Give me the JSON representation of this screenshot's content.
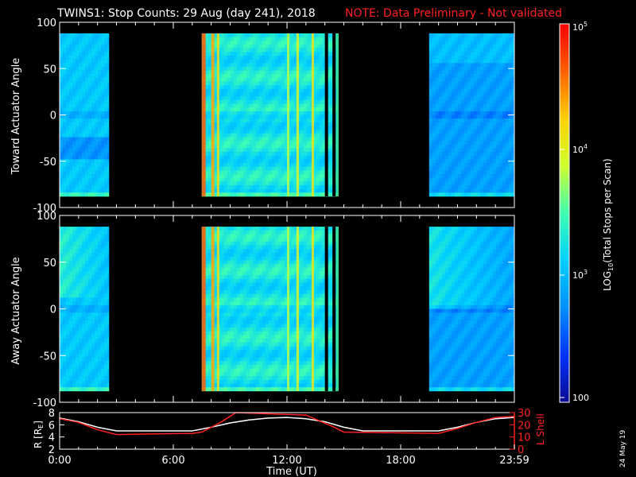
{
  "title": "TWINS1: Stop Counts: 29 Aug (day 241), 2018",
  "note": "NOTE: Data Preliminary - Not validated",
  "stamp": "24 May 19",
  "panel_top": {
    "ylabel": "Toward Actuator Angle",
    "yticks": [
      "100",
      "50",
      "0",
      "-50",
      "-100"
    ]
  },
  "panel_mid": {
    "ylabel": "Away Actuator Angle",
    "yticks": [
      "100",
      "50",
      "0",
      "-50",
      "-100"
    ]
  },
  "panel_bot": {
    "ylabel_left": "R [R",
    "ylabel_left_sub": "E",
    "ylabel_left_end": "]",
    "ylabel_right": "L Shell",
    "yticks_left": [
      "8",
      "6",
      "4",
      "2"
    ],
    "yticks_right": [
      "30",
      "20",
      "10",
      "0"
    ],
    "xticks": [
      "0:00",
      "6:00",
      "12:00",
      "18:00",
      "23:59"
    ],
    "xlabel": "Time (UT)"
  },
  "colorbar": {
    "label": "LOG",
    "label_sub": "10",
    "label_end": "(Total Stops per Scan)",
    "ticks": [
      {
        "base": "10",
        "exp": "5"
      },
      {
        "base": "10",
        "exp": "4"
      },
      {
        "base": "10",
        "exp": "3"
      },
      {
        "base": "100",
        "exp": ""
      }
    ],
    "colors": [
      "#0a0a90",
      "#0033ff",
      "#0090ff",
      "#00d0ff",
      "#40ffb0",
      "#d0ff30",
      "#ffd000",
      "#ff6000",
      "#ff0000"
    ]
  },
  "chart_data": [
    {
      "type": "heatmap",
      "ylabel": "Toward Actuator Angle",
      "x_unit": "hours UT",
      "xlim": [
        0,
        24
      ],
      "ylim": [
        -100,
        100
      ],
      "data_range_deg": [
        -88,
        88
      ],
      "observation_blocks_hours": [
        [
          0,
          2.6
        ],
        [
          7.5,
          14.6
        ],
        [
          19.5,
          24
        ]
      ],
      "high_count_stripes_hours": [
        7.5,
        8.0,
        8.3,
        12.0,
        12.5,
        13.3,
        14.6
      ]
    },
    {
      "type": "heatmap",
      "ylabel": "Away Actuator Angle",
      "x_unit": "hours UT",
      "xlim": [
        0,
        24
      ],
      "ylim": [
        -100,
        100
      ],
      "data_range_deg": [
        -88,
        88
      ],
      "observation_blocks_hours": [
        [
          0,
          2.6
        ],
        [
          7.5,
          14.6
        ],
        [
          19.5,
          24
        ]
      ],
      "high_count_stripes_hours": [
        7.5,
        8.0,
        8.3,
        12.0,
        12.5,
        13.3,
        14.6
      ]
    },
    {
      "type": "line",
      "xlim": [
        0,
        24
      ],
      "ylim_left": [
        2,
        8
      ],
      "ylim_right": [
        0,
        30
      ],
      "series": [
        {
          "name": "R [R",
          "axis": "left",
          "color": "#ffffff",
          "x": [
            0,
            1,
            2,
            3,
            5,
            7,
            8,
            9,
            10,
            11,
            12,
            13,
            14,
            15,
            16,
            18,
            20,
            21,
            22,
            23,
            24
          ],
          "y": [
            7.1,
            6.5,
            5.6,
            5.0,
            5.0,
            5.0,
            5.6,
            6.3,
            6.8,
            7.1,
            7.2,
            7.0,
            6.5,
            5.6,
            5.0,
            5.0,
            5.0,
            5.6,
            6.4,
            7.0,
            7.2
          ]
        },
        {
          "name": "L Shell",
          "axis": "right",
          "color": "#ff2020",
          "x": [
            0,
            1,
            2,
            3,
            5,
            7,
            7.5,
            8.5,
            9.3,
            13,
            14.5,
            15,
            20,
            21,
            22,
            23,
            24
          ],
          "y": [
            25,
            22,
            16,
            12,
            12.5,
            13,
            14,
            22,
            30,
            28,
            18,
            14,
            13,
            17,
            22,
            26,
            27
          ]
        }
      ]
    }
  ]
}
